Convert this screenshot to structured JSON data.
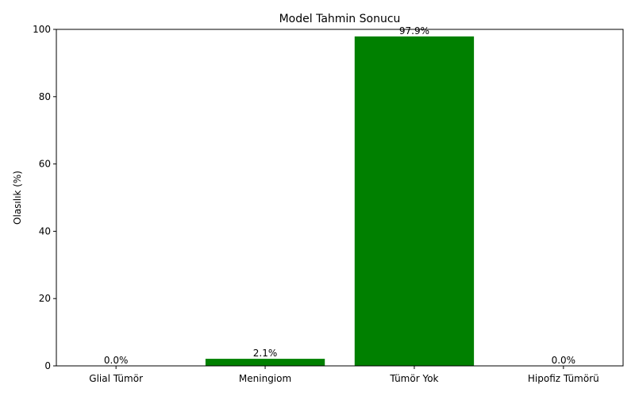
{
  "chart_data": {
    "type": "bar",
    "title": "Model Tahmin Sonucu",
    "xlabel": "",
    "ylabel": "Olasılık (%)",
    "categories": [
      "Glial Tümör",
      "Meningiom",
      "Tümör Yok",
      "Hipofiz Tümörü"
    ],
    "values": [
      0.0,
      2.1,
      97.9,
      0.0
    ],
    "data_labels": [
      "0.0%",
      "2.1%",
      "97.9%",
      "0.0%"
    ],
    "ylim": [
      0,
      100
    ],
    "yticks": [
      0,
      20,
      40,
      60,
      80,
      100
    ],
    "grid": false,
    "bar_color": "#008000"
  }
}
